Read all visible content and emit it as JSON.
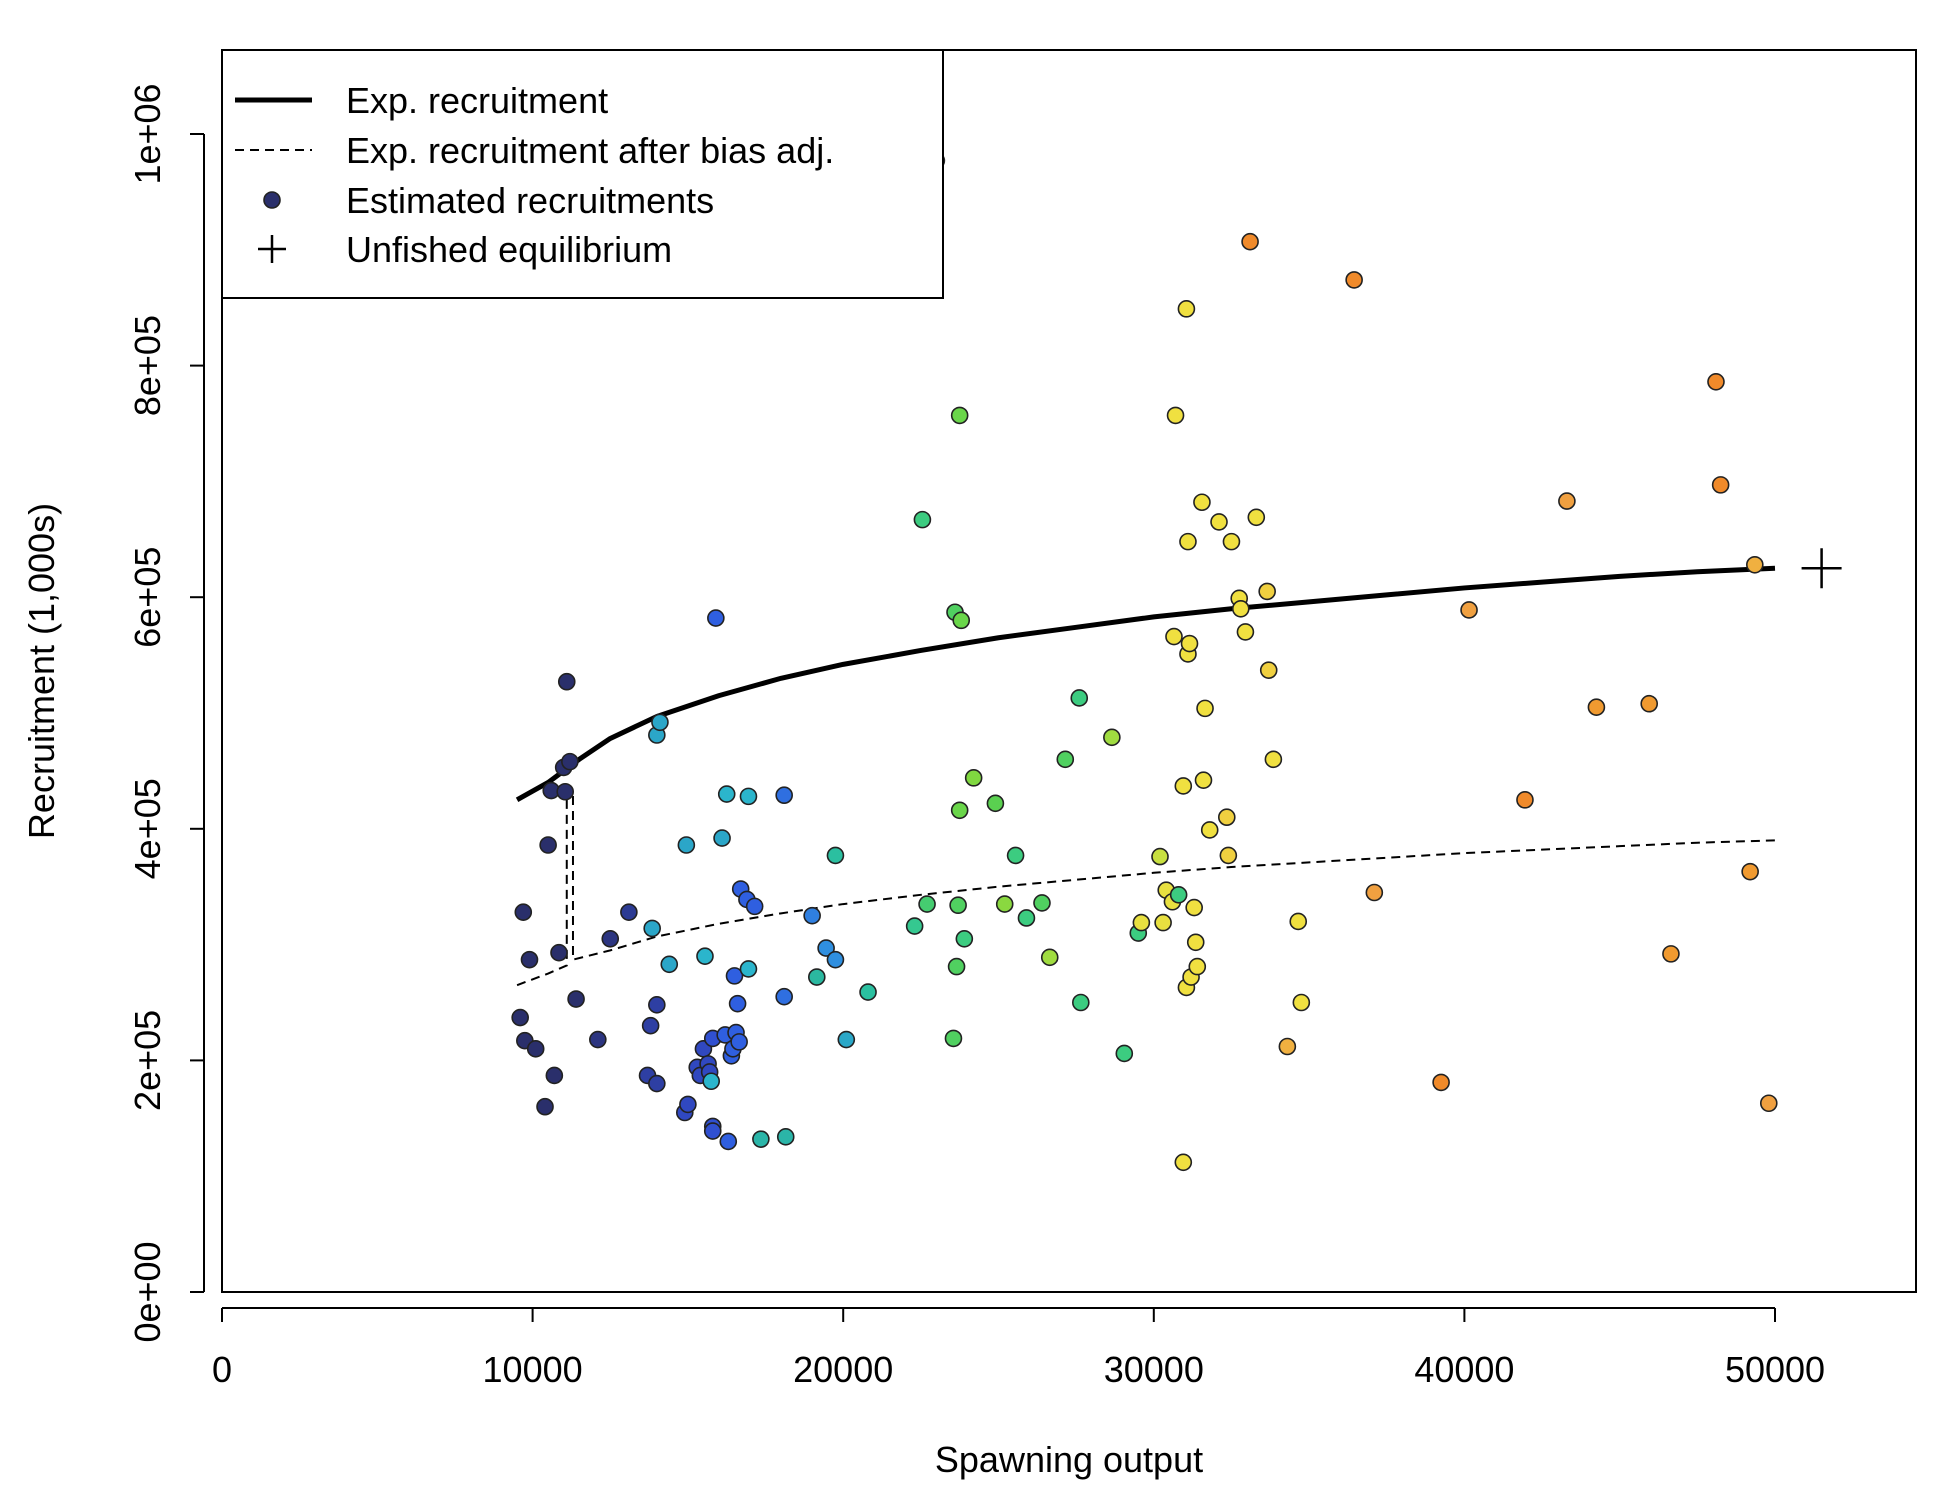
{
  "chart_data": {
    "type": "scatter",
    "title": "",
    "xlabel": "Spawning output",
    "ylabel": "Recruitment (1,000s)",
    "xlim": [
      0,
      55000
    ],
    "ylim": [
      0,
      1080000
    ],
    "x_ticks": [
      0,
      10000,
      20000,
      30000,
      40000,
      50000
    ],
    "x_tick_labels": [
      "0",
      "10000",
      "20000",
      "30000",
      "40000",
      "50000"
    ],
    "y_ticks": [
      0,
      200000,
      400000,
      600000,
      800000,
      1000000
    ],
    "y_tick_labels": [
      "0e+00",
      "2e+05",
      "4e+05",
      "6e+05",
      "8e+05",
      "1e+06"
    ],
    "grid": false,
    "legend": {
      "position": "top-left",
      "entries": [
        {
          "label": "Exp. recruitment",
          "style": "solid-line"
        },
        {
          "label": "Exp. recruitment after bias adj.",
          "style": "dashed-line"
        },
        {
          "label": "Estimated recruitments",
          "style": "point"
        },
        {
          "label": "Unfished equilibrium",
          "style": "plus"
        }
      ]
    },
    "colors": {
      "early": "#2a2f6b",
      "blue": "#2f5fe0",
      "cyan": "#2bb5cc",
      "green": "#56d066",
      "yellow": "#f5e13a",
      "orange": "#f08a2a",
      "point_edge": "#222222",
      "line": "#000000"
    },
    "expected_recruitment": {
      "x": [
        9500,
        10500,
        11500,
        12500,
        14000,
        16000,
        18000,
        20000,
        22500,
        25000,
        27500,
        30000,
        32500,
        35000,
        37500,
        40000,
        42500,
        45000,
        47500,
        50000
      ],
      "y": [
        425000,
        440000,
        460000,
        478000,
        497000,
        515000,
        530000,
        542000,
        554000,
        565000,
        574000,
        583000,
        590000,
        596000,
        602000,
        608000,
        613000,
        618000,
        622000,
        625000
      ]
    },
    "expected_recruitment_bias_adj": {
      "x": [
        9500,
        10500,
        11100,
        11100,
        11300,
        11300,
        12500,
        14000,
        16000,
        18000,
        20000,
        22500,
        25000,
        27500,
        30000,
        32500,
        35000,
        37500,
        40000,
        42500,
        45000,
        47500,
        50000
      ],
      "y": [
        265000,
        275000,
        282000,
        433000,
        433000,
        287000,
        295000,
        307000,
        318000,
        327000,
        335000,
        343000,
        350000,
        356000,
        362000,
        367000,
        371000,
        375000,
        379000,
        382000,
        385000,
        388000,
        390000
      ]
    },
    "unfished_equilibrium": {
      "x": 51500,
      "y": 625000
    },
    "points": [
      {
        "x": 9600,
        "y": 237000,
        "color": "#2a2f6b"
      },
      {
        "x": 9700,
        "y": 328000,
        "color": "#2a2f6b"
      },
      {
        "x": 9750,
        "y": 217000,
        "color": "#2a2f6b"
      },
      {
        "x": 9900,
        "y": 287000,
        "color": "#2a2f6b"
      },
      {
        "x": 10100,
        "y": 210000,
        "color": "#2a2f6b"
      },
      {
        "x": 10400,
        "y": 160000,
        "color": "#2a2f6b"
      },
      {
        "x": 10500,
        "y": 386000,
        "color": "#2a2f6b"
      },
      {
        "x": 10600,
        "y": 433000,
        "color": "#2a2f6b"
      },
      {
        "x": 10700,
        "y": 187000,
        "color": "#2a2f6b"
      },
      {
        "x": 10850,
        "y": 293000,
        "color": "#2a2f6b"
      },
      {
        "x": 11000,
        "y": 453000,
        "color": "#2a2f6b"
      },
      {
        "x": 11050,
        "y": 432000,
        "color": "#2a2f6b"
      },
      {
        "x": 11100,
        "y": 527000,
        "color": "#2a2f6b"
      },
      {
        "x": 11200,
        "y": 458000,
        "color": "#2a2f6b"
      },
      {
        "x": 11400,
        "y": 253000,
        "color": "#2a2f6b"
      },
      {
        "x": 12100,
        "y": 218000,
        "color": "#2c3580"
      },
      {
        "x": 12500,
        "y": 305000,
        "color": "#2c3580"
      },
      {
        "x": 13100,
        "y": 328000,
        "color": "#2c3b93"
      },
      {
        "x": 13700,
        "y": 187000,
        "color": "#2e3fa3"
      },
      {
        "x": 13800,
        "y": 230000,
        "color": "#2e3fa3"
      },
      {
        "x": 14000,
        "y": 180000,
        "color": "#2e3fa3"
      },
      {
        "x": 14000,
        "y": 248000,
        "color": "#2e3fa3"
      },
      {
        "x": 13850,
        "y": 314000,
        "color": "#2ba6c8"
      },
      {
        "x": 14000,
        "y": 481000,
        "color": "#2ba6c8"
      },
      {
        "x": 14100,
        "y": 492000,
        "color": "#2ba6c8"
      },
      {
        "x": 14400,
        "y": 283000,
        "color": "#2ba6c8"
      },
      {
        "x": 14900,
        "y": 155000,
        "color": "#3048c0"
      },
      {
        "x": 15000,
        "y": 162000,
        "color": "#3048c0"
      },
      {
        "x": 14950,
        "y": 386000,
        "color": "#2ba6c8"
      },
      {
        "x": 15300,
        "y": 194000,
        "color": "#3048c0"
      },
      {
        "x": 15400,
        "y": 187000,
        "color": "#3048c0"
      },
      {
        "x": 15500,
        "y": 210000,
        "color": "#3048c0"
      },
      {
        "x": 15550,
        "y": 290000,
        "color": "#2bb5cc"
      },
      {
        "x": 15650,
        "y": 197000,
        "color": "#3048c0"
      },
      {
        "x": 15700,
        "y": 190000,
        "color": "#3048c0"
      },
      {
        "x": 15750,
        "y": 182000,
        "color": "#2bb5cc"
      },
      {
        "x": 15800,
        "y": 143000,
        "color": "#3050d0"
      },
      {
        "x": 15800,
        "y": 219000,
        "color": "#3050d0"
      },
      {
        "x": 15800,
        "y": 139000,
        "color": "#3050d0"
      },
      {
        "x": 15900,
        "y": 582000,
        "color": "#2f5fe0"
      },
      {
        "x": 16100,
        "y": 392000,
        "color": "#2ba6c8"
      },
      {
        "x": 16200,
        "y": 222000,
        "color": "#2f5fe0"
      },
      {
        "x": 16250,
        "y": 430000,
        "color": "#2bb5cc"
      },
      {
        "x": 16300,
        "y": 130000,
        "color": "#2f5fe0"
      },
      {
        "x": 16400,
        "y": 204000,
        "color": "#2f5fe0"
      },
      {
        "x": 16450,
        "y": 210000,
        "color": "#2f5fe0"
      },
      {
        "x": 16500,
        "y": 273000,
        "color": "#2f5fe0"
      },
      {
        "x": 16550,
        "y": 224000,
        "color": "#2f5fe0"
      },
      {
        "x": 16600,
        "y": 249000,
        "color": "#2f5fe0"
      },
      {
        "x": 16650,
        "y": 216000,
        "color": "#2f5fe0"
      },
      {
        "x": 16700,
        "y": 348000,
        "color": "#2f5fe0"
      },
      {
        "x": 16900,
        "y": 339000,
        "color": "#2f5fe0"
      },
      {
        "x": 16950,
        "y": 279000,
        "color": "#2bb5cc"
      },
      {
        "x": 16950,
        "y": 428000,
        "color": "#2bb5cc"
      },
      {
        "x": 17150,
        "y": 333000,
        "color": "#2f5fe0"
      },
      {
        "x": 17350,
        "y": 132000,
        "color": "#2bb5a8"
      },
      {
        "x": 18100,
        "y": 255000,
        "color": "#2f6fe0"
      },
      {
        "x": 18100,
        "y": 429000,
        "color": "#2f6fe0"
      },
      {
        "x": 18150,
        "y": 134000,
        "color": "#2bb5a8"
      },
      {
        "x": 19000,
        "y": 325000,
        "color": "#2f7fe0"
      },
      {
        "x": 19150,
        "y": 272000,
        "color": "#2bb8a0"
      },
      {
        "x": 19450,
        "y": 297000,
        "color": "#2f8fe0"
      },
      {
        "x": 19750,
        "y": 377000,
        "color": "#2bbfa0"
      },
      {
        "x": 19750,
        "y": 287000,
        "color": "#2f8fe0"
      },
      {
        "x": 20100,
        "y": 218000,
        "color": "#2ba8c8"
      },
      {
        "x": 20800,
        "y": 259000,
        "color": "#2bc0a0"
      },
      {
        "x": 22300,
        "y": 316000,
        "color": "#35c890"
      },
      {
        "x": 22550,
        "y": 667000,
        "color": "#3ccc80"
      },
      {
        "x": 22700,
        "y": 335000,
        "color": "#45cc70"
      },
      {
        "x": 23000,
        "y": 977000,
        "color": "#a0e890"
      },
      {
        "x": 23550,
        "y": 219000,
        "color": "#50d060"
      },
      {
        "x": 23600,
        "y": 587000,
        "color": "#50d060"
      },
      {
        "x": 23650,
        "y": 281000,
        "color": "#50d060"
      },
      {
        "x": 23700,
        "y": 334000,
        "color": "#50d060"
      },
      {
        "x": 23750,
        "y": 416000,
        "color": "#6ad64a"
      },
      {
        "x": 23750,
        "y": 757000,
        "color": "#6ad64a"
      },
      {
        "x": 23800,
        "y": 580000,
        "color": "#6ad64a"
      },
      {
        "x": 23900,
        "y": 305000,
        "color": "#3ccc80"
      },
      {
        "x": 24200,
        "y": 444000,
        "color": "#80d840"
      },
      {
        "x": 24900,
        "y": 422000,
        "color": "#5ad050"
      },
      {
        "x": 25200,
        "y": 335000,
        "color": "#8ad840"
      },
      {
        "x": 25550,
        "y": 377000,
        "color": "#3ccc80"
      },
      {
        "x": 25900,
        "y": 323000,
        "color": "#3ccc80"
      },
      {
        "x": 26400,
        "y": 336000,
        "color": "#50d060"
      },
      {
        "x": 26650,
        "y": 289000,
        "color": "#a0dc40"
      },
      {
        "x": 27150,
        "y": 460000,
        "color": "#50d060"
      },
      {
        "x": 27600,
        "y": 513000,
        "color": "#3ccc80"
      },
      {
        "x": 27650,
        "y": 250000,
        "color": "#3ccc80"
      },
      {
        "x": 28650,
        "y": 479000,
        "color": "#a0dc40"
      },
      {
        "x": 29050,
        "y": 206000,
        "color": "#3ccc80"
      },
      {
        "x": 29500,
        "y": 310000,
        "color": "#3ccc80"
      },
      {
        "x": 29600,
        "y": 319000,
        "color": "#e8e040"
      },
      {
        "x": 30200,
        "y": 376000,
        "color": "#c8e040"
      },
      {
        "x": 30300,
        "y": 319000,
        "color": "#e8e040"
      },
      {
        "x": 30400,
        "y": 347000,
        "color": "#e8e040"
      },
      {
        "x": 30600,
        "y": 337000,
        "color": "#e8e040"
      },
      {
        "x": 30650,
        "y": 566000,
        "color": "#f0e040"
      },
      {
        "x": 30700,
        "y": 757000,
        "color": "#f0e040"
      },
      {
        "x": 30800,
        "y": 343000,
        "color": "#3ccc80"
      },
      {
        "x": 30950,
        "y": 437000,
        "color": "#f0e040"
      },
      {
        "x": 30950,
        "y": 112000,
        "color": "#f0e040"
      },
      {
        "x": 31050,
        "y": 263000,
        "color": "#f0e040"
      },
      {
        "x": 31050,
        "y": 849000,
        "color": "#f0e040"
      },
      {
        "x": 31100,
        "y": 551000,
        "color": "#f0e040"
      },
      {
        "x": 31100,
        "y": 648000,
        "color": "#f0e040"
      },
      {
        "x": 31150,
        "y": 560000,
        "color": "#f0e040"
      },
      {
        "x": 31200,
        "y": 272000,
        "color": "#f0e040"
      },
      {
        "x": 31300,
        "y": 332000,
        "color": "#f0e040"
      },
      {
        "x": 31350,
        "y": 302000,
        "color": "#f0e040"
      },
      {
        "x": 31400,
        "y": 281000,
        "color": "#f0e040"
      },
      {
        "x": 31550,
        "y": 682000,
        "color": "#f0e040"
      },
      {
        "x": 31600,
        "y": 442000,
        "color": "#f0e040"
      },
      {
        "x": 31650,
        "y": 504000,
        "color": "#f0e040"
      },
      {
        "x": 31800,
        "y": 399000,
        "color": "#f0e040"
      },
      {
        "x": 32100,
        "y": 665000,
        "color": "#f0e040"
      },
      {
        "x": 32350,
        "y": 410000,
        "color": "#f0d040"
      },
      {
        "x": 32400,
        "y": 377000,
        "color": "#f0d040"
      },
      {
        "x": 32500,
        "y": 648000,
        "color": "#f0e040"
      },
      {
        "x": 32750,
        "y": 599000,
        "color": "#f0e040"
      },
      {
        "x": 32800,
        "y": 590000,
        "color": "#f0e040"
      },
      {
        "x": 32950,
        "y": 570000,
        "color": "#f0e040"
      },
      {
        "x": 33100,
        "y": 907000,
        "color": "#f08a2a"
      },
      {
        "x": 33300,
        "y": 669000,
        "color": "#f0e040"
      },
      {
        "x": 33650,
        "y": 605000,
        "color": "#f0d040"
      },
      {
        "x": 33700,
        "y": 537000,
        "color": "#f0d040"
      },
      {
        "x": 33850,
        "y": 460000,
        "color": "#f0e040"
      },
      {
        "x": 34300,
        "y": 212000,
        "color": "#f0b040"
      },
      {
        "x": 34650,
        "y": 320000,
        "color": "#f0e040"
      },
      {
        "x": 34750,
        "y": 250000,
        "color": "#f0e040"
      },
      {
        "x": 36450,
        "y": 874000,
        "color": "#f08a2a"
      },
      {
        "x": 37100,
        "y": 345000,
        "color": "#f0a040"
      },
      {
        "x": 39250,
        "y": 181000,
        "color": "#f08a2a"
      },
      {
        "x": 40150,
        "y": 589000,
        "color": "#f0a040"
      },
      {
        "x": 41950,
        "y": 425000,
        "color": "#f08a2a"
      },
      {
        "x": 43300,
        "y": 683000,
        "color": "#f0a040"
      },
      {
        "x": 44250,
        "y": 505000,
        "color": "#f09a30"
      },
      {
        "x": 45950,
        "y": 508000,
        "color": "#f09a30"
      },
      {
        "x": 46650,
        "y": 292000,
        "color": "#f09a30"
      },
      {
        "x": 48100,
        "y": 786000,
        "color": "#f08a2a"
      },
      {
        "x": 48250,
        "y": 697000,
        "color": "#f08a2a"
      },
      {
        "x": 49200,
        "y": 363000,
        "color": "#f09a30"
      },
      {
        "x": 49350,
        "y": 628000,
        "color": "#f0b040"
      },
      {
        "x": 49800,
        "y": 163000,
        "color": "#f0a040"
      }
    ]
  }
}
